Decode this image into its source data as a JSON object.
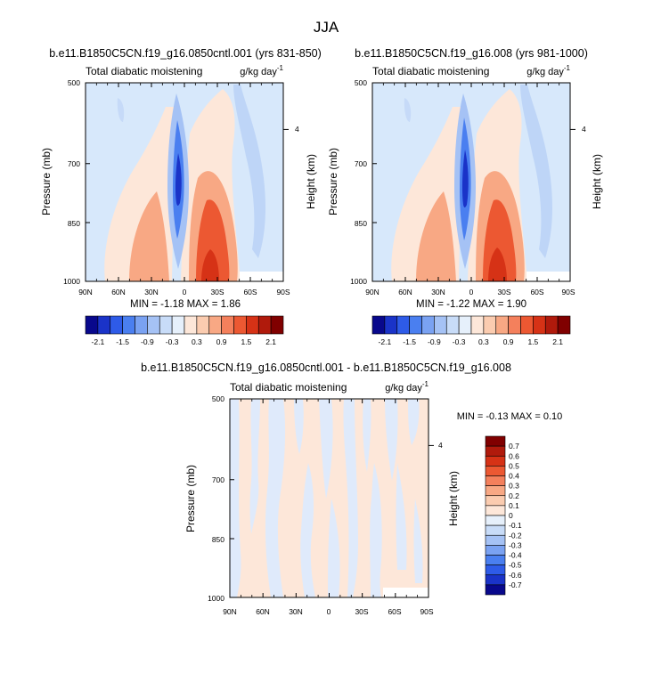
{
  "figure": {
    "title": "JJA"
  },
  "chart_data": [
    {
      "type": "heatmap",
      "title": "b.e11.B1850C5CN.f19_g16.0850cntl.001 (yrs 831-850)",
      "subtitle_left": "Total diabatic moistening",
      "units_base": "g/kg day",
      "units_exp": "-1",
      "ylabel": "Pressure (mb)",
      "ylabel_right": "Height (km)",
      "x_ticks": [
        "90N",
        "60N",
        "30N",
        "0",
        "30S",
        "60S",
        "90S"
      ],
      "y_ticks": [
        "500",
        "700",
        "850",
        "1000"
      ],
      "right_ticks": [
        "4"
      ],
      "ylim": [
        1000,
        500
      ],
      "xlim": [
        "90N",
        "90S"
      ],
      "min_max": "MIN = -1.18  MAX =  1.86",
      "min": -1.18,
      "max": 1.86
    },
    {
      "type": "heatmap",
      "title": "b.e11.B1850C5CN.f19_g16.008 (yrs 981-1000)",
      "subtitle_left": "Total diabatic moistening",
      "units_base": "g/kg day",
      "units_exp": "-1",
      "ylabel": "Pressure (mb)",
      "ylabel_right": "Height (km)",
      "x_ticks": [
        "90N",
        "60N",
        "30N",
        "0",
        "30S",
        "60S",
        "90S"
      ],
      "y_ticks": [
        "500",
        "700",
        "850",
        "1000"
      ],
      "right_ticks": [
        "4"
      ],
      "ylim": [
        1000,
        500
      ],
      "xlim": [
        "90N",
        "90S"
      ],
      "min_max": "MIN = -1.22  MAX =  1.90",
      "min": -1.22,
      "max": 1.9
    },
    {
      "type": "heatmap",
      "title": "b.e11.B1850C5CN.f19_g16.0850cntl.001 - b.e11.B1850C5CN.f19_g16.008",
      "subtitle_left": "Total diabatic moistening",
      "units_base": "g/kg day",
      "units_exp": "-1",
      "ylabel": "Pressure (mb)",
      "ylabel_right": "Height (km)",
      "x_ticks": [
        "90N",
        "60N",
        "30N",
        "0",
        "30S",
        "60S",
        "90S"
      ],
      "y_ticks": [
        "500",
        "700",
        "850",
        "1000"
      ],
      "right_ticks": [
        "4"
      ],
      "ylim": [
        1000,
        500
      ],
      "xlim": [
        "90N",
        "90S"
      ],
      "min_max": "MIN = -0.13  MAX =  0.10",
      "min": -0.13,
      "max": 0.1
    }
  ],
  "colorbars": {
    "shared_abs": {
      "labels": [
        "-2.1",
        "-1.5",
        "-0.9",
        "-0.3",
        "0.3",
        "0.9",
        "1.5",
        "2.1"
      ],
      "colors": [
        "#08088c",
        "#1a33c8",
        "#2e5be8",
        "#4a7ff0",
        "#7aa2f2",
        "#a5c2f5",
        "#c8dcf8",
        "#e6f0fb",
        "#fde7d9",
        "#fbccb0",
        "#f8a884",
        "#f4805c",
        "#ec5832",
        "#d63216",
        "#b01a0c",
        "#800000"
      ]
    },
    "diff": {
      "labels": [
        "0.7",
        "0.6",
        "0.5",
        "0.4",
        "0.3",
        "0.2",
        "0.1",
        "0",
        "-0.1",
        "-0.2",
        "-0.3",
        "-0.4",
        "-0.5",
        "-0.6",
        "-0.7"
      ],
      "colors": [
        "#800000",
        "#b01a0c",
        "#d63216",
        "#ec5832",
        "#f4805c",
        "#f8a884",
        "#fbccb0",
        "#fde7d9",
        "#e6f0fb",
        "#c8dcf8",
        "#a5c2f5",
        "#7aa2f2",
        "#4a7ff0",
        "#2e5be8",
        "#1a33c8",
        "#08088c"
      ]
    }
  }
}
